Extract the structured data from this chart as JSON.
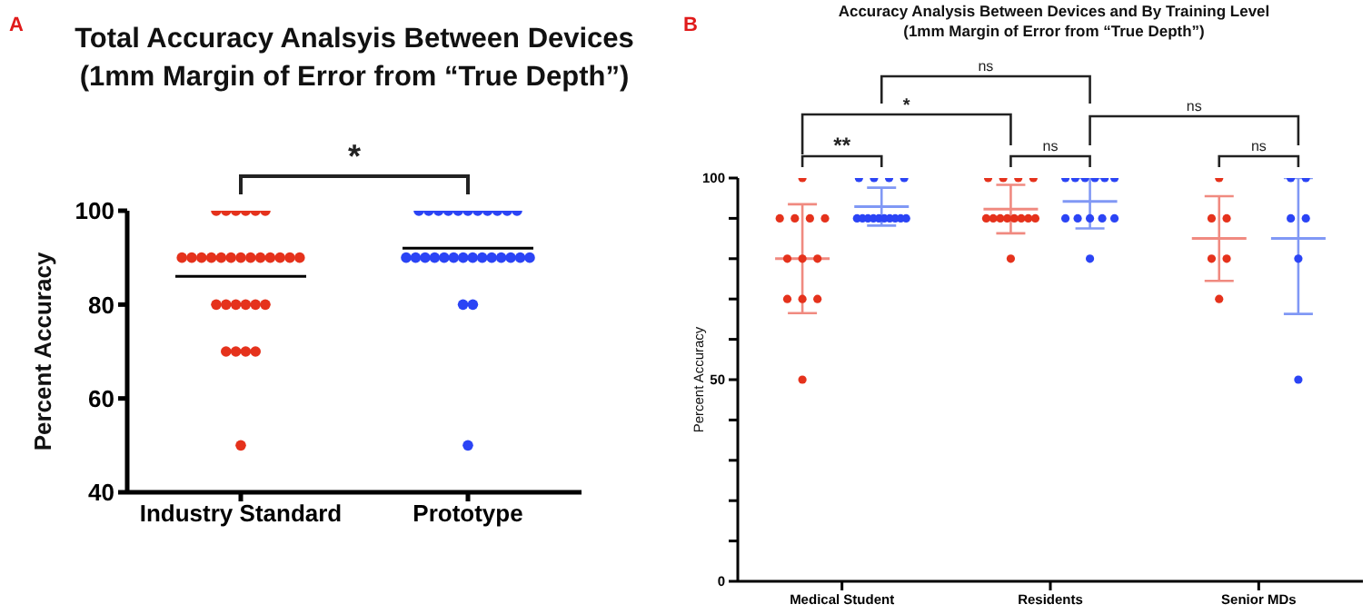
{
  "chart_data": [
    {
      "type": "scatter",
      "title": "Total Accuracy Analsyis Between Devices\n(1mm Margin of Error from “True Depth”)",
      "ylabel": "Percent Accuracy",
      "categories": [
        "Industry Standard",
        "Prototype"
      ],
      "ylim": [
        40,
        100
      ],
      "yticks": [
        40,
        60,
        80,
        100
      ],
      "annotations": [
        "A",
        "*"
      ],
      "series": [
        {
          "marker": "circle",
          "color": "#e5321c",
          "x": [
            "Industry Standard",
            "Industry Standard",
            "Industry Standard",
            "Industry Standard",
            "Industry Standard",
            "Industry Standard",
            "Industry Standard",
            "Industry Standard",
            "Industry Standard",
            "Industry Standard",
            "Industry Standard",
            "Industry Standard",
            "Industry Standard",
            "Industry Standard",
            "Industry Standard",
            "Industry Standard",
            "Industry Standard",
            "Industry Standard",
            "Industry Standard",
            "Industry Standard",
            "Industry Standard",
            "Industry Standard",
            "Industry Standard",
            "Industry Standard",
            "Industry Standard",
            "Industry Standard",
            "Industry Standard",
            "Industry Standard",
            "Industry Standard",
            "Industry Standard"
          ],
          "values": [
            100,
            100,
            100,
            100,
            100,
            100,
            90,
            90,
            90,
            90,
            90,
            90,
            90,
            90,
            90,
            90,
            90,
            90,
            90,
            80,
            80,
            80,
            80,
            80,
            80,
            70,
            70,
            70,
            70,
            50
          ]
        },
        {
          "marker": "circle",
          "color": "#2b44f5",
          "x": [
            "Prototype",
            "Prototype",
            "Prototype",
            "Prototype",
            "Prototype",
            "Prototype",
            "Prototype",
            "Prototype",
            "Prototype",
            "Prototype",
            "Prototype",
            "Prototype",
            "Prototype",
            "Prototype",
            "Prototype",
            "Prototype",
            "Prototype",
            "Prototype",
            "Prototype",
            "Prototype",
            "Prototype",
            "Prototype",
            "Prototype",
            "Prototype",
            "Prototype",
            "Prototype",
            "Prototype",
            "Prototype"
          ],
          "values": [
            100,
            100,
            100,
            100,
            100,
            100,
            100,
            100,
            100,
            100,
            100,
            90,
            90,
            90,
            90,
            90,
            90,
            90,
            90,
            90,
            90,
            90,
            90,
            90,
            90,
            80,
            80,
            50
          ]
        },
        {
          "type": "box",
          "color": "#000000",
          "boxes": [
            {
              "low": 86,
              "q1": 86,
              "median": 86,
              "q3": 86,
              "high": 86
            },
            {
              "low": 92,
              "q1": 92,
              "median": 92,
              "q3": 92,
              "high": 92
            }
          ]
        }
      ]
    },
    {
      "type": "scatter",
      "title": "Accuracy Analysis Between Devices and By Training Level\n(1mm Margin of Error from “True Depth”)",
      "ylabel": "Percent Accuracy",
      "categories": [
        "Medical Student",
        "Residents",
        "Senior MDs"
      ],
      "ylim": [
        0,
        100
      ],
      "yticks": [
        0,
        {
          "value": 10,
          "label": null
        },
        {
          "value": 20,
          "label": null
        },
        {
          "value": 30,
          "label": null
        },
        {
          "value": 40,
          "label": null
        },
        50,
        {
          "value": 60,
          "label": null
        },
        {
          "value": 70,
          "label": null
        },
        {
          "value": 80,
          "label": null
        },
        {
          "value": 90,
          "label": null
        },
        100
      ],
      "annotations": [
        "B",
        "ns",
        "*",
        "ns",
        "**",
        "ns",
        "ns"
      ],
      "series": [
        {
          "type": "box",
          "color": "#f08a80",
          "boxes": [
            {
              "low": 66.5,
              "q1": 80,
              "median": 80,
              "q3": 80,
              "high": 93.5
            },
            {
              "low": 86.3,
              "q1": 92.3,
              "median": 92.3,
              "q3": 92.3,
              "high": 98.3
            },
            {
              "low": 74.5,
              "q1": 85,
              "median": 85,
              "q3": 85,
              "high": 95.5
            }
          ]
        },
        {
          "type": "box",
          "color": "#8098f5",
          "boxes": [
            {
              "low": 88.2,
              "q1": 92.9,
              "median": 92.9,
              "q3": 92.9,
              "high": 97.6
            },
            {
              "low": 87.5,
              "q1": 94.2,
              "median": 94.2,
              "q3": 94.2,
              "high": 100
            },
            {
              "low": 66.3,
              "q1": 85,
              "median": 85,
              "q3": 85,
              "high": 100
            }
          ]
        },
        {
          "marker": "circle",
          "color": "#e5321c",
          "x": [
            "Medical Student",
            "Medical Student",
            "Medical Student",
            "Medical Student",
            "Medical Student",
            "Medical Student",
            "Medical Student",
            "Medical Student",
            "Medical Student",
            "Medical Student",
            "Medical Student",
            "Medical Student",
            "Residents",
            "Residents",
            "Residents",
            "Residents",
            "Residents",
            "Residents",
            "Residents",
            "Residents",
            "Residents",
            "Residents",
            "Residents",
            "Residents",
            "Residents",
            "Senior MDs",
            "Senior MDs",
            "Senior MDs",
            "Senior MDs",
            "Senior MDs",
            "Senior MDs"
          ],
          "values": [
            100,
            90,
            90,
            90,
            90,
            80,
            80,
            80,
            70,
            70,
            70,
            50,
            100,
            100,
            100,
            100,
            90,
            90,
            90,
            90,
            90,
            90,
            90,
            90,
            80,
            100,
            90,
            90,
            80,
            80,
            70
          ]
        },
        {
          "marker": "circle",
          "color": "#2b44f5",
          "x": [
            "Medical Student",
            "Medical Student",
            "Medical Student",
            "Medical Student",
            "Medical Student",
            "Medical Student",
            "Medical Student",
            "Medical Student",
            "Medical Student",
            "Medical Student",
            "Medical Student",
            "Medical Student",
            "Medical Student",
            "Medical Student",
            "Residents",
            "Residents",
            "Residents",
            "Residents",
            "Residents",
            "Residents",
            "Residents",
            "Residents",
            "Residents",
            "Residents",
            "Residents",
            "Residents",
            "Senior MDs",
            "Senior MDs",
            "Senior MDs",
            "Senior MDs",
            "Senior MDs",
            "Senior MDs"
          ],
          "values": [
            100,
            100,
            100,
            100,
            90,
            90,
            90,
            90,
            90,
            90,
            90,
            90,
            90,
            90,
            100,
            100,
            100,
            100,
            100,
            100,
            90,
            90,
            90,
            90,
            90,
            80,
            100,
            100,
            90,
            90,
            80,
            50
          ]
        }
      ]
    }
  ]
}
